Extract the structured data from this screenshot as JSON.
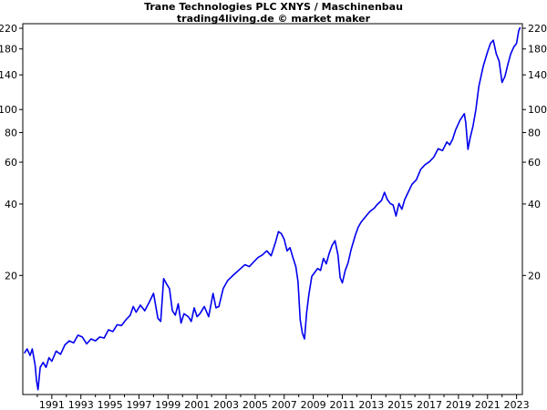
{
  "chart_data": {
    "type": "line",
    "title": "Trane Technologies PLC XNYS / Maschinenbau",
    "subtitle": "trading4living.de © market maker",
    "xlabel": "",
    "ylabel": "",
    "y_scale": "log",
    "grid": false,
    "ylim": [
      6.3,
      230
    ],
    "xlim": [
      1989.5,
      2023.9
    ],
    "x_ticks": [
      "1991",
      "1993",
      "1995",
      "1997",
      "1999",
      "2001",
      "2003",
      "2005",
      "2007",
      "2009",
      "2011",
      "2013",
      "2015",
      "2017",
      "2019",
      "2021",
      "2023"
    ],
    "y_ticks": [
      220,
      180,
      140,
      100,
      80,
      60,
      40,
      20
    ],
    "series": [
      {
        "color": "#0000ee",
        "points": [
          [
            1989.6,
            9.4
          ],
          [
            1989.8,
            9.8
          ],
          [
            1990.0,
            9.2
          ],
          [
            1990.15,
            9.8
          ],
          [
            1990.35,
            8.4
          ],
          [
            1990.45,
            7.2
          ],
          [
            1990.55,
            6.6
          ],
          [
            1990.7,
            8.2
          ],
          [
            1990.9,
            8.6
          ],
          [
            1991.1,
            8.2
          ],
          [
            1991.3,
            9.0
          ],
          [
            1991.5,
            8.7
          ],
          [
            1991.8,
            9.6
          ],
          [
            1992.1,
            9.3
          ],
          [
            1992.4,
            10.2
          ],
          [
            1992.7,
            10.6
          ],
          [
            1993.0,
            10.4
          ],
          [
            1993.3,
            11.2
          ],
          [
            1993.6,
            11.0
          ],
          [
            1993.9,
            10.3
          ],
          [
            1994.2,
            10.8
          ],
          [
            1994.5,
            10.6
          ],
          [
            1994.8,
            11.0
          ],
          [
            1995.1,
            10.9
          ],
          [
            1995.4,
            11.8
          ],
          [
            1995.7,
            11.6
          ],
          [
            1996.0,
            12.4
          ],
          [
            1996.3,
            12.3
          ],
          [
            1996.6,
            13.0
          ],
          [
            1996.9,
            13.6
          ],
          [
            1997.1,
            14.8
          ],
          [
            1997.3,
            14.0
          ],
          [
            1997.6,
            15.0
          ],
          [
            1997.9,
            14.2
          ],
          [
            1998.2,
            15.4
          ],
          [
            1998.5,
            16.8
          ],
          [
            1998.8,
            13.2
          ],
          [
            1999.0,
            12.8
          ],
          [
            1999.2,
            19.4
          ],
          [
            1999.4,
            18.4
          ],
          [
            1999.6,
            17.6
          ],
          [
            1999.8,
            14.2
          ],
          [
            2000.0,
            13.6
          ],
          [
            2000.2,
            15.2
          ],
          [
            2000.4,
            12.6
          ],
          [
            2000.6,
            13.8
          ],
          [
            2000.9,
            13.4
          ],
          [
            2001.1,
            12.8
          ],
          [
            2001.3,
            14.6
          ],
          [
            2001.5,
            13.4
          ],
          [
            2001.7,
            13.8
          ],
          [
            2002.0,
            14.8
          ],
          [
            2002.3,
            13.4
          ],
          [
            2002.6,
            16.8
          ],
          [
            2002.8,
            14.6
          ],
          [
            2003.0,
            14.8
          ],
          [
            2003.3,
            17.6
          ],
          [
            2003.6,
            19.0
          ],
          [
            2003.9,
            19.8
          ],
          [
            2004.2,
            20.6
          ],
          [
            2004.5,
            21.4
          ],
          [
            2004.8,
            22.2
          ],
          [
            2005.1,
            21.8
          ],
          [
            2005.4,
            22.8
          ],
          [
            2005.7,
            23.8
          ],
          [
            2006.0,
            24.4
          ],
          [
            2006.3,
            25.4
          ],
          [
            2006.6,
            24.2
          ],
          [
            2006.9,
            27.6
          ],
          [
            2007.1,
            30.6
          ],
          [
            2007.3,
            30.0
          ],
          [
            2007.5,
            28.4
          ],
          [
            2007.7,
            25.4
          ],
          [
            2007.9,
            26.2
          ],
          [
            2008.1,
            23.8
          ],
          [
            2008.3,
            21.8
          ],
          [
            2008.45,
            18.8
          ],
          [
            2008.6,
            13.0
          ],
          [
            2008.75,
            11.4
          ],
          [
            2008.9,
            10.8
          ],
          [
            2009.05,
            14.0
          ],
          [
            2009.2,
            16.6
          ],
          [
            2009.4,
            19.8
          ],
          [
            2009.6,
            20.6
          ],
          [
            2009.8,
            21.4
          ],
          [
            2010.0,
            21.0
          ],
          [
            2010.2,
            23.6
          ],
          [
            2010.4,
            22.4
          ],
          [
            2010.6,
            24.8
          ],
          [
            2010.8,
            26.8
          ],
          [
            2011.0,
            28.0
          ],
          [
            2011.2,
            24.4
          ],
          [
            2011.35,
            19.6
          ],
          [
            2011.5,
            18.6
          ],
          [
            2011.7,
            21.0
          ],
          [
            2011.9,
            22.6
          ],
          [
            2012.1,
            25.6
          ],
          [
            2012.4,
            29.6
          ],
          [
            2012.6,
            32.0
          ],
          [
            2012.8,
            33.6
          ],
          [
            2013.1,
            35.4
          ],
          [
            2013.4,
            37.2
          ],
          [
            2013.7,
            38.4
          ],
          [
            2013.9,
            39.8
          ],
          [
            2014.2,
            41.4
          ],
          [
            2014.4,
            44.8
          ],
          [
            2014.6,
            41.8
          ],
          [
            2014.8,
            40.2
          ],
          [
            2015.0,
            39.6
          ],
          [
            2015.2,
            35.6
          ],
          [
            2015.4,
            40.2
          ],
          [
            2015.6,
            38.0
          ],
          [
            2015.8,
            41.8
          ],
          [
            2016.0,
            44.4
          ],
          [
            2016.3,
            48.4
          ],
          [
            2016.6,
            50.6
          ],
          [
            2016.9,
            56.0
          ],
          [
            2017.2,
            58.6
          ],
          [
            2017.5,
            60.2
          ],
          [
            2017.8,
            63.0
          ],
          [
            2018.1,
            68.4
          ],
          [
            2018.4,
            67.2
          ],
          [
            2018.7,
            73.0
          ],
          [
            2018.9,
            71.0
          ],
          [
            2019.1,
            75.0
          ],
          [
            2019.3,
            82.0
          ],
          [
            2019.6,
            90.0
          ],
          [
            2019.9,
            96.0
          ],
          [
            2020.0,
            88.0
          ],
          [
            2020.15,
            68.0
          ],
          [
            2020.3,
            76.0
          ],
          [
            2020.5,
            85.0
          ],
          [
            2020.7,
            100.0
          ],
          [
            2020.9,
            125.0
          ],
          [
            2021.2,
            152.0
          ],
          [
            2021.5,
            175.0
          ],
          [
            2021.7,
            190.0
          ],
          [
            2021.9,
            196.0
          ],
          [
            2022.1,
            172.0
          ],
          [
            2022.3,
            160.0
          ],
          [
            2022.5,
            130.0
          ],
          [
            2022.7,
            138.0
          ],
          [
            2022.9,
            155.0
          ],
          [
            2023.1,
            172.0
          ],
          [
            2023.3,
            183.0
          ],
          [
            2023.5,
            190.0
          ],
          [
            2023.65,
            215.0
          ],
          [
            2023.75,
            222.0
          ]
        ]
      }
    ]
  }
}
